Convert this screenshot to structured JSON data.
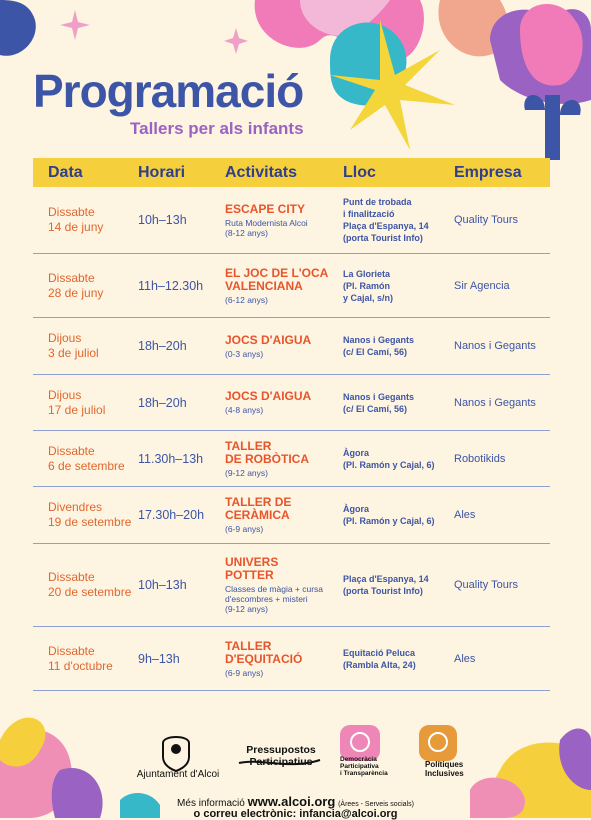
{
  "header": {
    "title": "Programació",
    "subtitle": "Tallers per als infants"
  },
  "table": {
    "columns": [
      "Data",
      "Horari",
      "Activitats",
      "Lloc",
      "Empresa"
    ],
    "rows": [
      {
        "date": "Dissabte\n14 de juny",
        "time": "10h–13h",
        "activity": "ESCAPE CITY",
        "detail": "Ruta Modernista Alcoi\n(8-12 anys)",
        "place": "Punt de trobada\ni finalització\nPlaça d'Espanya, 14\n(porta Tourist Info)",
        "company": "Quality Tours"
      },
      {
        "date": "Dissabte\n28 de juny",
        "time": "11h–12.30h",
        "activity": "EL JOC DE L'OCA\nVALENCIANA",
        "detail": "(6-12 anys)",
        "place": "La Glorieta\n(Pl. Ramón\ny Cajal, s/n)",
        "company": "Sir Agencia"
      },
      {
        "date": "Dijous\n3 de juliol",
        "time": "18h–20h",
        "activity": "JOCS D'AIGUA",
        "detail": "(0-3 anys)",
        "place": "Nanos i Gegants\n(c/ El Camí, 56)",
        "company": "Nanos i Gegants"
      },
      {
        "date": "Dijous\n17 de juliol",
        "time": "18h–20h",
        "activity": "JOCS D'AIGUA",
        "detail": "(4-8 anys)",
        "place": "Nanos i Gegants\n(c/ El Camí, 56)",
        "company": "Nanos i Gegants"
      },
      {
        "date": "Dissabte\n6 de setembre",
        "time": "11.30h–13h",
        "activity": "TALLER\nDE ROBÒTICA",
        "detail": "(9-12 anys)",
        "place": "Àgora\n(Pl. Ramón y Cajal, 6)",
        "company": "Robotikids"
      },
      {
        "date": "Divendres\n19 de setembre",
        "time": "17.30h–20h",
        "activity": "TALLER DE\nCERÀMICA",
        "detail": "(6-9 anys)",
        "place": "Àgora\n(Pl. Ramón y Cajal, 6)",
        "company": "Ales"
      },
      {
        "date": "Dissabte\n20 de setembre",
        "time": "10h–13h",
        "activity": "UNIVERS\nPOTTER",
        "detail": "Classes de màgia + cursa\nd'escombres + misteri\n(9-12 anys)",
        "place": "Plaça d'Espanya, 14\n(porta Tourist Info)",
        "company": "Quality Tours"
      },
      {
        "date": "Dissabte\n11 d'octubre",
        "time": "9h–13h",
        "activity": "TALLER\nD'EQUITACIÓ",
        "detail": "(6-9 anys)",
        "place": "Equitació Peluca\n(Rambla Alta, 24)",
        "company": "Ales"
      }
    ]
  },
  "footer": {
    "logos": [
      "Ajuntament d'Alcoi",
      "Pressupostos\nParticipatius",
      "Democràcia\nParticipativa\ni Transparència",
      "Polítiques\nInclusives"
    ],
    "info_label": "Més informació",
    "website": "www.alcoi.org",
    "info_note": "(Àrees - Serveis socials)",
    "email_line": "o correu electrònic: infancia@alcoi.org"
  }
}
